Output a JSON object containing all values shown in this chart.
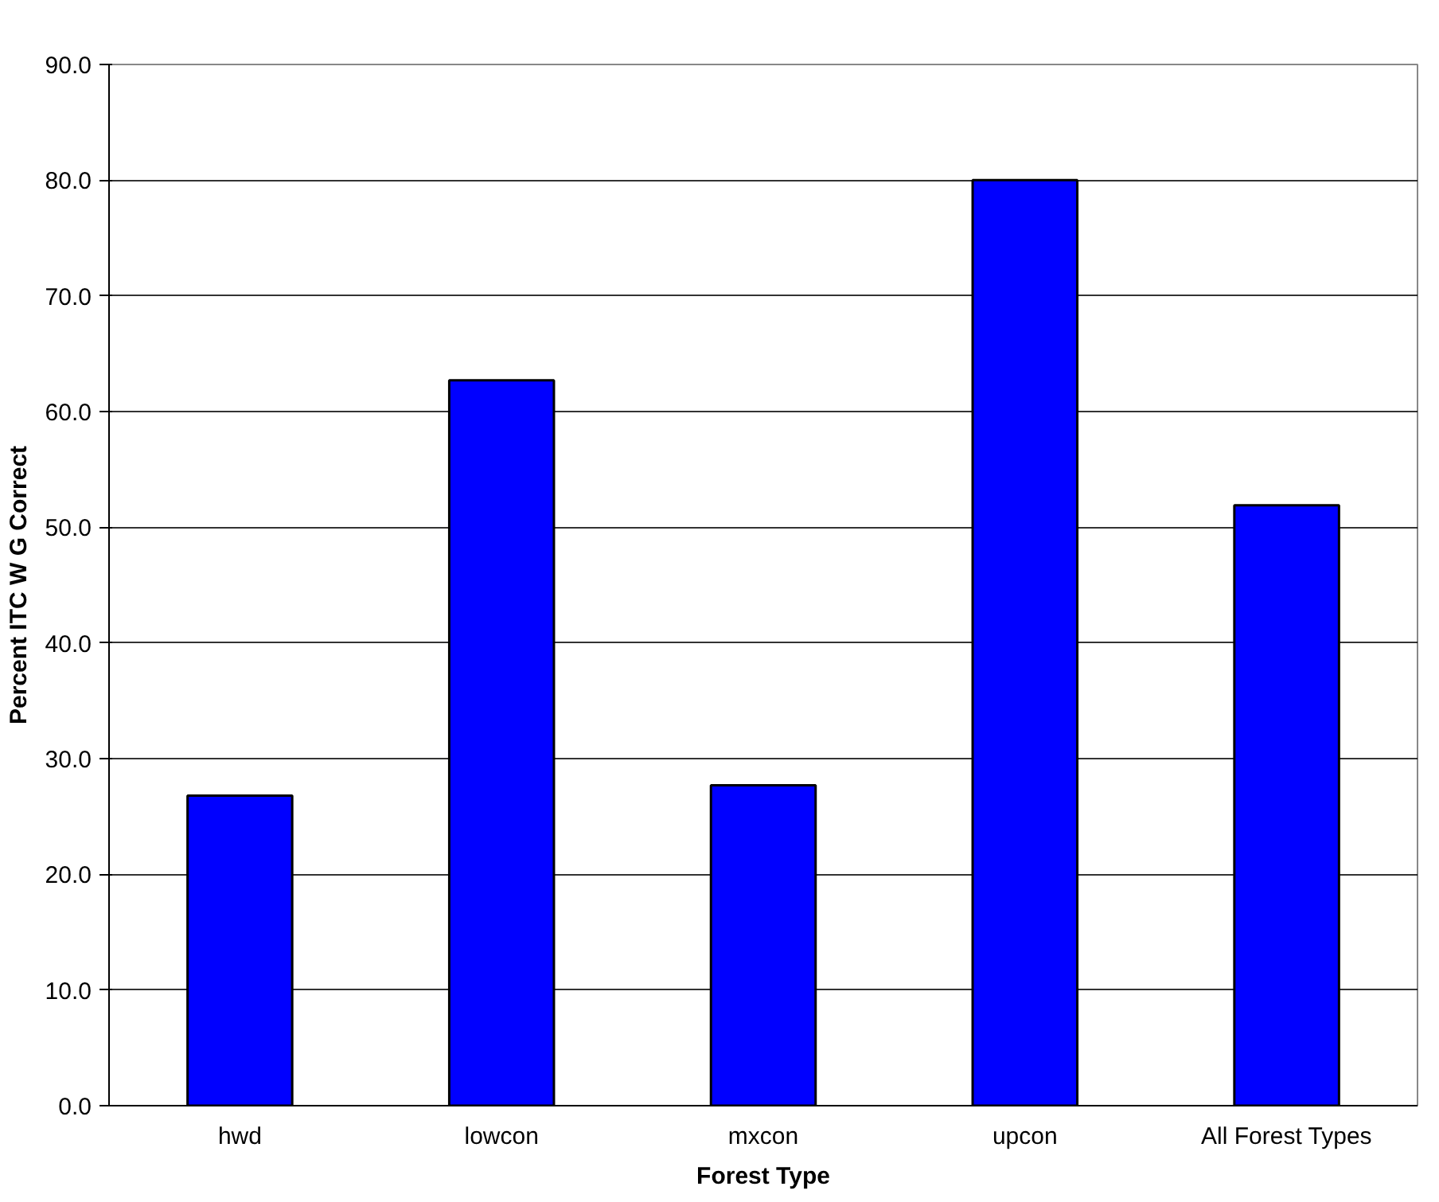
{
  "chart_data": {
    "type": "bar",
    "xlabel": "Forest Type",
    "ylabel": "Percent ITC W G Correct",
    "categories": [
      "hwd",
      "lowcon",
      "mxcon",
      "upcon",
      "All Forest Types"
    ],
    "values": [
      26.8,
      62.7,
      27.7,
      80.0,
      51.9
    ],
    "color": "#0000ff",
    "ylim": [
      0,
      90
    ],
    "yticks": [
      {
        "value": 0,
        "label": "0.0"
      },
      {
        "value": 10,
        "label": "10.0"
      },
      {
        "value": 20,
        "label": "20.0"
      },
      {
        "value": 30,
        "label": "30.0"
      },
      {
        "value": 40,
        "label": "40.0"
      },
      {
        "value": 50,
        "label": "50.0"
      },
      {
        "value": 60,
        "label": "60.0"
      },
      {
        "value": 70,
        "label": "70.0"
      },
      {
        "value": 80,
        "label": "80.0"
      },
      {
        "value": 90,
        "label": "90.0"
      }
    ],
    "grid": "y"
  }
}
